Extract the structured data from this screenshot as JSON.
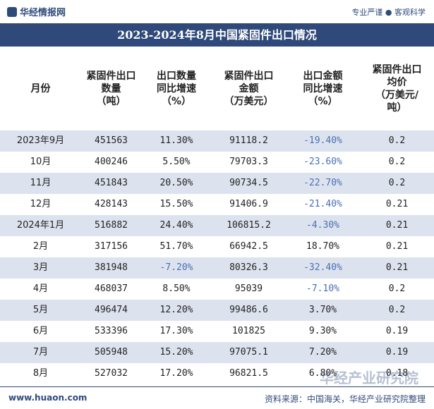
{
  "header": {
    "logo": "华经情报网",
    "slogan": "专业严谨 ● 客观科学"
  },
  "title": "2023-2024年8月中国紧固件出口情况",
  "table": {
    "columns": [
      [
        "月份"
      ],
      [
        "紧固件出口",
        "数量",
        "（吨）"
      ],
      [
        "出口数量",
        "同比增速",
        "（%）"
      ],
      [
        "紧固件出口",
        "金额",
        "（万美元）"
      ],
      [
        "出口金额",
        "同比增速",
        "（%）"
      ],
      [
        "紧固件出口",
        "均价",
        "（万美元/",
        "吨）"
      ]
    ],
    "rows": [
      [
        "2023年9月",
        "451563",
        "11.30%",
        "91118.2",
        "-19.40%",
        "0.2"
      ],
      [
        "10月",
        "400246",
        "5.50%",
        "79703.3",
        "-23.60%",
        "0.2"
      ],
      [
        "11月",
        "451843",
        "20.50%",
        "90734.5",
        "-22.70%",
        "0.2"
      ],
      [
        "12月",
        "428143",
        "15.50%",
        "91406.9",
        "-21.40%",
        "0.21"
      ],
      [
        "2024年1月",
        "516882",
        "24.40%",
        "106815.2",
        "-4.30%",
        "0.21"
      ],
      [
        "2月",
        "317156",
        "51.70%",
        "66942.5",
        "18.70%",
        "0.21"
      ],
      [
        "3月",
        "381948",
        "-7.20%",
        "80326.3",
        "-32.40%",
        "0.21"
      ],
      [
        "4月",
        "468037",
        "8.50%",
        "95039",
        "-7.10%",
        "0.2"
      ],
      [
        "5月",
        "496474",
        "12.20%",
        "99486.6",
        "3.70%",
        "0.2"
      ],
      [
        "6月",
        "533396",
        "17.30%",
        "101825",
        "9.30%",
        "0.19"
      ],
      [
        "7月",
        "505948",
        "15.20%",
        "97075.1",
        "7.20%",
        "0.19"
      ],
      [
        "8月",
        "527032",
        "17.20%",
        "96821.5",
        "6.80%",
        "0.18"
      ]
    ]
  },
  "footer": {
    "site": "www.huaon.com",
    "source": "资料来源：中国海关，华经产业研究院整理"
  },
  "watermark": "华经产业研究院"
}
